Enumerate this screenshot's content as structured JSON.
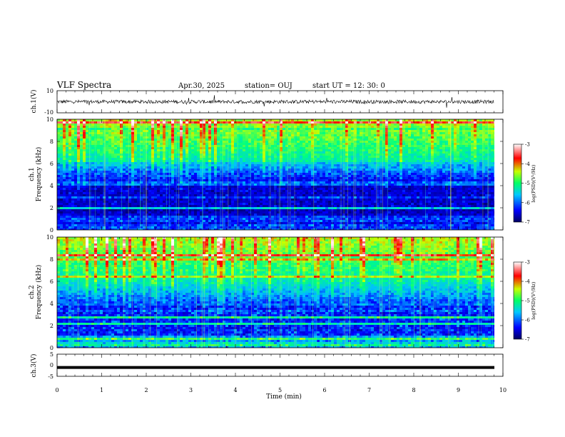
{
  "header": {
    "title": "VLF Spectra",
    "date": "Apr.30, 2025",
    "station": "station= OUJ",
    "start": "start  UT  =   12: 30: 0"
  },
  "chart_data": [
    {
      "type": "line",
      "id": "ch1-waveform",
      "ylabel": "ch.1(V)",
      "ylim": [
        -10,
        10
      ],
      "yticks": [
        "10",
        "-10"
      ],
      "xlim": [
        0,
        10
      ],
      "baseline": 0,
      "noise_amplitude": 2
    },
    {
      "type": "heatmap",
      "id": "ch1-spectrogram",
      "ylabel": "ch.1\nFrequency (kHz)",
      "ylim": [
        0,
        10
      ],
      "yticks": [
        "0",
        "2",
        "4",
        "6",
        "8",
        "10"
      ],
      "xlim": [
        0,
        10
      ],
      "colorbar": {
        "label": "log(PSD)(V²/Hz)",
        "range": [
          -7,
          -3
        ],
        "ticks": [
          "-3",
          "-4",
          "-5",
          "-6",
          "-7"
        ]
      }
    },
    {
      "type": "heatmap",
      "id": "ch2-spectrogram",
      "ylabel": "ch.2\nFrequency (kHz)",
      "ylim": [
        0,
        10
      ],
      "yticks": [
        "0",
        "2",
        "4",
        "6",
        "8",
        "10"
      ],
      "xlim": [
        0,
        10
      ],
      "colorbar": {
        "label": "log(PSD)(V²/Hz)",
        "range": [
          -7,
          -3
        ],
        "ticks": [
          "-3",
          "-4",
          "-5",
          "-6",
          "-7"
        ]
      }
    },
    {
      "type": "line",
      "id": "ch3-waveform",
      "ylabel": "ch.3(V)",
      "ylim": [
        -5,
        5
      ],
      "yticks": [
        "5",
        "0",
        "-5"
      ],
      "xlim": [
        0,
        10
      ],
      "baseline": -1,
      "xlabel": "Time (min)",
      "xticks": [
        "0",
        "1",
        "2",
        "3",
        "4",
        "5",
        "6",
        "7",
        "8",
        "9",
        "10"
      ]
    }
  ],
  "colors": {
    "colormap": [
      "#000080",
      "#0000ff",
      "#00bfff",
      "#00ff80",
      "#c8ff00",
      "#ff0000",
      "#ffffff"
    ]
  }
}
